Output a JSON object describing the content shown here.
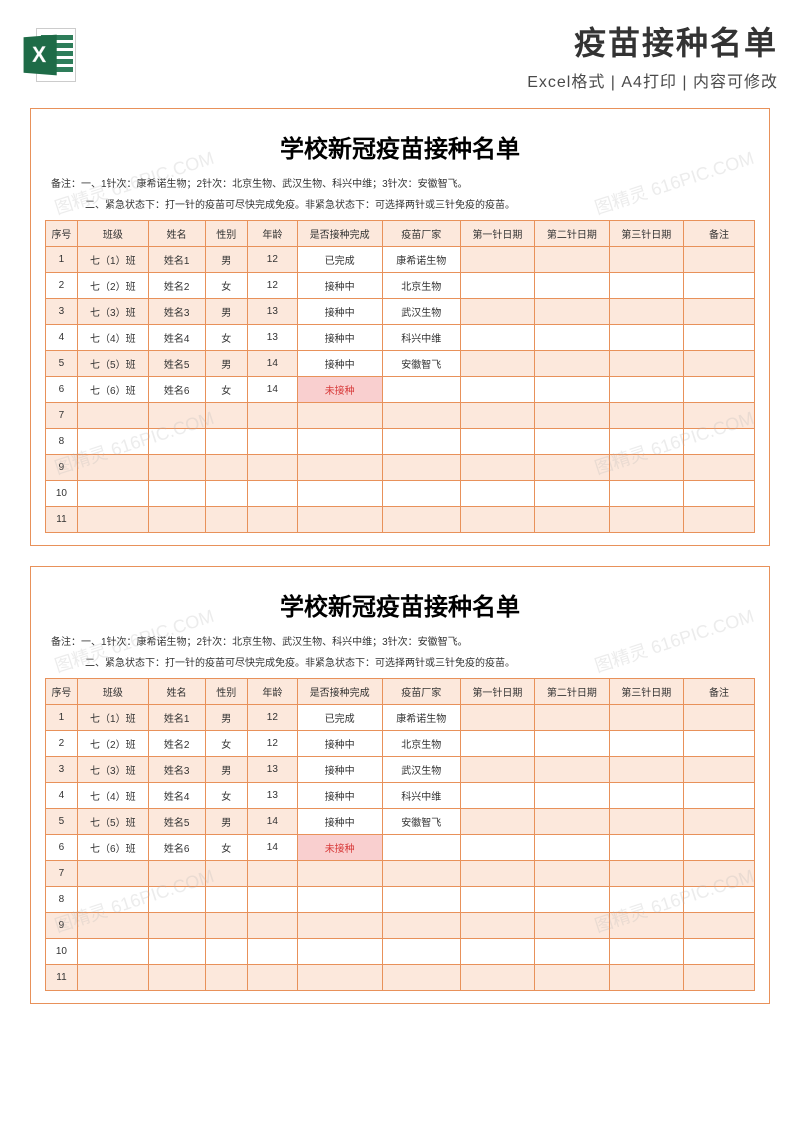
{
  "header": {
    "title": "疫苗接种名单",
    "subtitle": "Excel格式 | A4打印 | 内容可修改"
  },
  "sheet": {
    "title": "学校新冠疫苗接种名单",
    "note_line1": "备注：一、1针次：康希诺生物；2针次：北京生物、武汉生物、科兴中维；3针次：安徽智飞。",
    "note_line2": "二、紧急状态下：打一针的疫苗可尽快完成免疫。非紧急状态下：可选择两针或三针免疫的疫苗。",
    "columns": [
      "序号",
      "班级",
      "姓名",
      "性别",
      "年龄",
      "是否接种完成",
      "疫苗厂家",
      "第一针日期",
      "第二针日期",
      "第三针日期",
      "备注"
    ],
    "rows": [
      {
        "seq": "1",
        "class": "七（1）班",
        "name": "姓名1",
        "sex": "男",
        "age": "12",
        "status": "已完成",
        "mfr": "康希诺生物",
        "d1": "",
        "d2": "",
        "d3": "",
        "remark": "",
        "status_red": false
      },
      {
        "seq": "2",
        "class": "七（2）班",
        "name": "姓名2",
        "sex": "女",
        "age": "12",
        "status": "接种中",
        "mfr": "北京生物",
        "d1": "",
        "d2": "",
        "d3": "",
        "remark": "",
        "status_red": false
      },
      {
        "seq": "3",
        "class": "七（3）班",
        "name": "姓名3",
        "sex": "男",
        "age": "13",
        "status": "接种中",
        "mfr": "武汉生物",
        "d1": "",
        "d2": "",
        "d3": "",
        "remark": "",
        "status_red": false
      },
      {
        "seq": "4",
        "class": "七（4）班",
        "name": "姓名4",
        "sex": "女",
        "age": "13",
        "status": "接种中",
        "mfr": "科兴中维",
        "d1": "",
        "d2": "",
        "d3": "",
        "remark": "",
        "status_red": false
      },
      {
        "seq": "5",
        "class": "七（5）班",
        "name": "姓名5",
        "sex": "男",
        "age": "14",
        "status": "接种中",
        "mfr": "安徽智飞",
        "d1": "",
        "d2": "",
        "d3": "",
        "remark": "",
        "status_red": false
      },
      {
        "seq": "6",
        "class": "七（6）班",
        "name": "姓名6",
        "sex": "女",
        "age": "14",
        "status": "未接种",
        "mfr": "",
        "d1": "",
        "d2": "",
        "d3": "",
        "remark": "",
        "status_red": true
      },
      {
        "seq": "7",
        "class": "",
        "name": "",
        "sex": "",
        "age": "",
        "status": "",
        "mfr": "",
        "d1": "",
        "d2": "",
        "d3": "",
        "remark": "",
        "status_red": false
      },
      {
        "seq": "8",
        "class": "",
        "name": "",
        "sex": "",
        "age": "",
        "status": "",
        "mfr": "",
        "d1": "",
        "d2": "",
        "d3": "",
        "remark": "",
        "status_red": false
      },
      {
        "seq": "9",
        "class": "",
        "name": "",
        "sex": "",
        "age": "",
        "status": "",
        "mfr": "",
        "d1": "",
        "d2": "",
        "d3": "",
        "remark": "",
        "status_red": false
      },
      {
        "seq": "10",
        "class": "",
        "name": "",
        "sex": "",
        "age": "",
        "status": "",
        "mfr": "",
        "d1": "",
        "d2": "",
        "d3": "",
        "remark": "",
        "status_red": false
      },
      {
        "seq": "11",
        "class": "",
        "name": "",
        "sex": "",
        "age": "",
        "status": "",
        "mfr": "",
        "d1": "",
        "d2": "",
        "d3": "",
        "remark": "",
        "status_red": false
      }
    ]
  },
  "colors": {
    "border": "#e8915a",
    "header_bg": "#fce8dc",
    "stripe_bg": "#fce8dc",
    "text": "#333333",
    "red_text": "#d83a3a",
    "red_bg": "#f9cfcf",
    "excel_green": "#1e6b47"
  },
  "white_cells": [
    "status",
    "mfr"
  ]
}
